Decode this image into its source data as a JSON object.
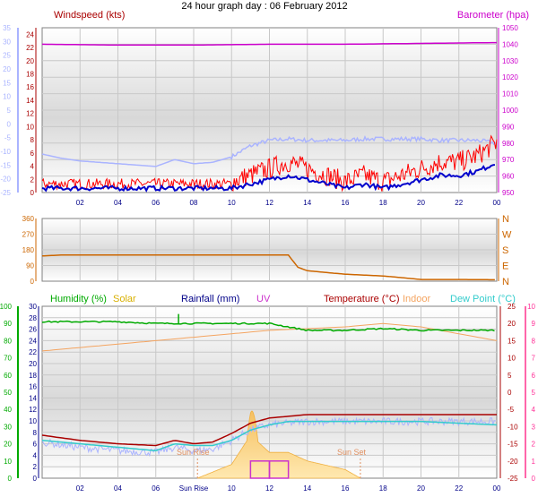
{
  "title": "24 hour graph day : 06 February 2012",
  "hours": [
    "02",
    "04",
    "06",
    "08",
    "10",
    "12",
    "14",
    "16",
    "18",
    "20",
    "22",
    "00"
  ],
  "panel1": {
    "left_title": "Windspeed (kts)",
    "right_title": "Barometer (hpa)",
    "left_ticks": [
      0,
      2,
      4,
      6,
      8,
      10,
      12,
      14,
      16,
      18,
      20,
      22,
      24
    ],
    "temp_ticks": [
      -25,
      -20,
      -15,
      -10,
      -5,
      0,
      5,
      10,
      15,
      20,
      25,
      30,
      35
    ],
    "baro_ticks": [
      950,
      960,
      970,
      980,
      990,
      1000,
      1010,
      1020,
      1030,
      1040,
      1050
    ]
  },
  "panel2": {
    "left_ticks": [
      0,
      90,
      180,
      270,
      360
    ],
    "right_labels": [
      "N",
      "E",
      "S",
      "W",
      "N"
    ]
  },
  "panel3": {
    "legend": {
      "humidity": "Humidity (%)",
      "solar": "Solar",
      "rainfall": "Rainfall (mm)",
      "uv": "UV",
      "temperature": "Temperature (°C)",
      "indoor": "Indoor",
      "dewpoint": "Dew Point (°C)"
    },
    "humidity_ticks": [
      0,
      10,
      20,
      30,
      40,
      50,
      60,
      70,
      80,
      90,
      100
    ],
    "rain_ticks": [
      0,
      2,
      4,
      6,
      8,
      10,
      12,
      14,
      16,
      18,
      20,
      22,
      24,
      26,
      28,
      30
    ],
    "temp_ticks": [
      -25,
      -20,
      -15,
      -10,
      -5,
      0,
      5,
      10,
      15,
      20,
      25
    ],
    "uv_ticks": [
      0,
      1,
      2,
      3,
      4,
      5,
      6,
      7,
      8,
      9,
      10
    ],
    "sunrise_label": "Sun Rise",
    "sunset_label": "Sun Set",
    "sunrise_axis_label": "Sun Rise"
  },
  "colors": {
    "wind_speed": "#ff0000",
    "wind_avg": "#0000cc",
    "barometer": "#cc00cc",
    "temp_blue": "#aab4ff",
    "direction": "#cc6600",
    "humidity": "#00aa00",
    "temperature": "#aa0000",
    "dewpoint": "#33cccc",
    "indoor": "#f4a460",
    "solar": "#f5c060",
    "uv": "#cc33cc"
  },
  "chart_data": [
    {
      "type": "line",
      "title": "24 hour graph day : 06 February 2012",
      "x_label": "hour",
      "series": [
        {
          "name": "Windspeed (kts)",
          "axis": "left",
          "x": [
            0,
            2,
            4,
            6,
            8,
            10,
            11,
            12,
            13,
            14,
            15,
            16,
            17,
            18,
            19,
            20,
            21,
            22,
            23,
            24
          ],
          "values": [
            1,
            1,
            1,
            1,
            1,
            1,
            2,
            3,
            4,
            3,
            2,
            1,
            2,
            1,
            2,
            3,
            4,
            4,
            5,
            7
          ]
        },
        {
          "name": "Barometer (hpa)",
          "axis": "right",
          "x": [
            0,
            4,
            8,
            12,
            16,
            20,
            24
          ],
          "values": [
            1040,
            1039.5,
            1039.5,
            1040,
            1040,
            1040.5,
            1041
          ]
        }
      ],
      "ylim_left": [
        0,
        25
      ],
      "ylim_right": [
        950,
        1050
      ]
    },
    {
      "type": "line",
      "x_label": "hour",
      "series": [
        {
          "x": [
            0,
            1,
            2,
            4,
            6,
            8,
            10,
            12,
            13,
            13.5,
            14,
            16,
            18,
            19,
            20,
            22,
            24
          ],
          "values": [
            145,
            150,
            150,
            150,
            150,
            150,
            150,
            150,
            150,
            80,
            60,
            40,
            30,
            20,
            10,
            10,
            8
          ]
        }
      ],
      "ylim": [
        0,
        360
      ]
    },
    {
      "type": "line",
      "x_label": "hour",
      "series": [
        {
          "name": "Humidity (%)",
          "axis": "humidity",
          "x": [
            0,
            2,
            4,
            6,
            7,
            8,
            10,
            12,
            13,
            14,
            16,
            18,
            20,
            22,
            24
          ],
          "values": [
            91,
            91,
            91,
            90,
            90,
            90,
            90,
            90,
            88,
            86,
            86,
            87,
            86,
            86,
            86
          ]
        },
        {
          "name": "Temperature (°C)",
          "axis": "temp",
          "x": [
            0,
            2,
            4,
            6,
            7,
            8,
            9,
            10,
            11,
            12,
            13,
            14,
            16,
            18,
            20,
            22,
            24
          ],
          "values": [
            -12.5,
            -14,
            -15,
            -15.5,
            -14,
            -15,
            -14.5,
            -12,
            -9,
            -7.5,
            -7,
            -6.5,
            -6.5,
            -6.5,
            -6.5,
            -6.5,
            -6.5
          ]
        },
        {
          "name": "Dew Point (°C)",
          "axis": "temp",
          "x": [
            0,
            2,
            4,
            6,
            7,
            8,
            9,
            10,
            11,
            12,
            13,
            14,
            16,
            18,
            20,
            22,
            24
          ],
          "values": [
            -14,
            -15,
            -16,
            -17,
            -15,
            -15.5,
            -15.5,
            -14,
            -11,
            -9.5,
            -8.5,
            -8.5,
            -8.5,
            -8.5,
            -8.5,
            -9,
            -9.5
          ]
        },
        {
          "name": "Indoor",
          "axis": "temp",
          "x": [
            0,
            4,
            8,
            12,
            16,
            18,
            20,
            22,
            24
          ],
          "values": [
            12,
            14,
            16,
            18,
            19,
            20,
            19,
            17,
            15
          ]
        },
        {
          "name": "Solar",
          "axis": "uv",
          "x": [
            8.2,
            10,
            11,
            12,
            13,
            14,
            16,
            16.8
          ],
          "values": [
            0,
            0.8,
            2.5,
            1.5,
            1.5,
            1.0,
            0.5,
            0
          ]
        },
        {
          "name": "UV",
          "axis": "uv",
          "x": [
            11,
            12,
            13
          ],
          "values": [
            1,
            1,
            1
          ]
        }
      ],
      "ylim_humidity": [
        0,
        100
      ],
      "ylim_rainfall": [
        0,
        30
      ],
      "ylim_temp": [
        -25,
        25
      ],
      "ylim_uv": [
        0,
        10
      ]
    }
  ]
}
